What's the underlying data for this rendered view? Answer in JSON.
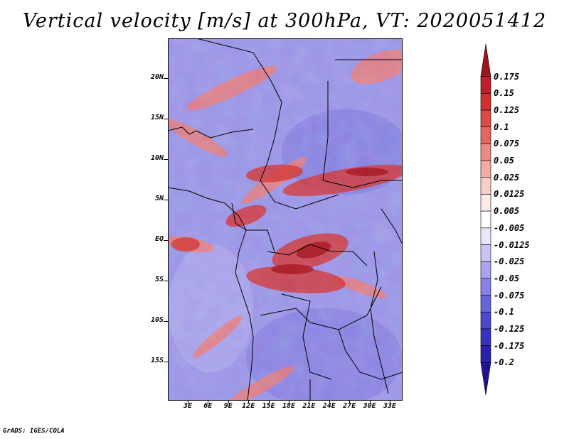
{
  "title": "Vertical velocity [m/s] at 300hPa, VT: 2020051412",
  "credit": "GrADS: IGES/COLA",
  "lat_labels": [
    "20N",
    "15N",
    "10N",
    "5N",
    "EQ",
    "5S",
    "10S",
    "15S"
  ],
  "lon_labels": [
    "3E",
    "6E",
    "9E",
    "12E",
    "15E",
    "18E",
    "21E",
    "24E",
    "27E",
    "30E",
    "33E"
  ],
  "colorbar": {
    "levels": [
      "0.175",
      "0.15",
      "0.125",
      "0.1",
      "0.075",
      "0.05",
      "0.025",
      "0.0125",
      "0.005",
      "-0.005",
      "-0.0125",
      "-0.025",
      "-0.05",
      "-0.075",
      "-0.1",
      "-0.125",
      "-0.175",
      "-0.2"
    ],
    "colors": [
      "#a0141e",
      "#c01e2a",
      "#d22f2f",
      "#dd4a45",
      "#e5665e",
      "#ed8a80",
      "#f4aca2",
      "#f9cec7",
      "#fde9e6",
      "#ffffff",
      "#e8e6fb",
      "#c8c5f4",
      "#a8a4ee",
      "#8782e6",
      "#6a64dc",
      "#4f48cf",
      "#3a31c0",
      "#2a1fae",
      "#1e1295"
    ]
  },
  "map": {
    "background": "#9a95e6",
    "warm": "#ef7a6e",
    "hot": "#c0262b",
    "cool": "#6d66d6"
  }
}
